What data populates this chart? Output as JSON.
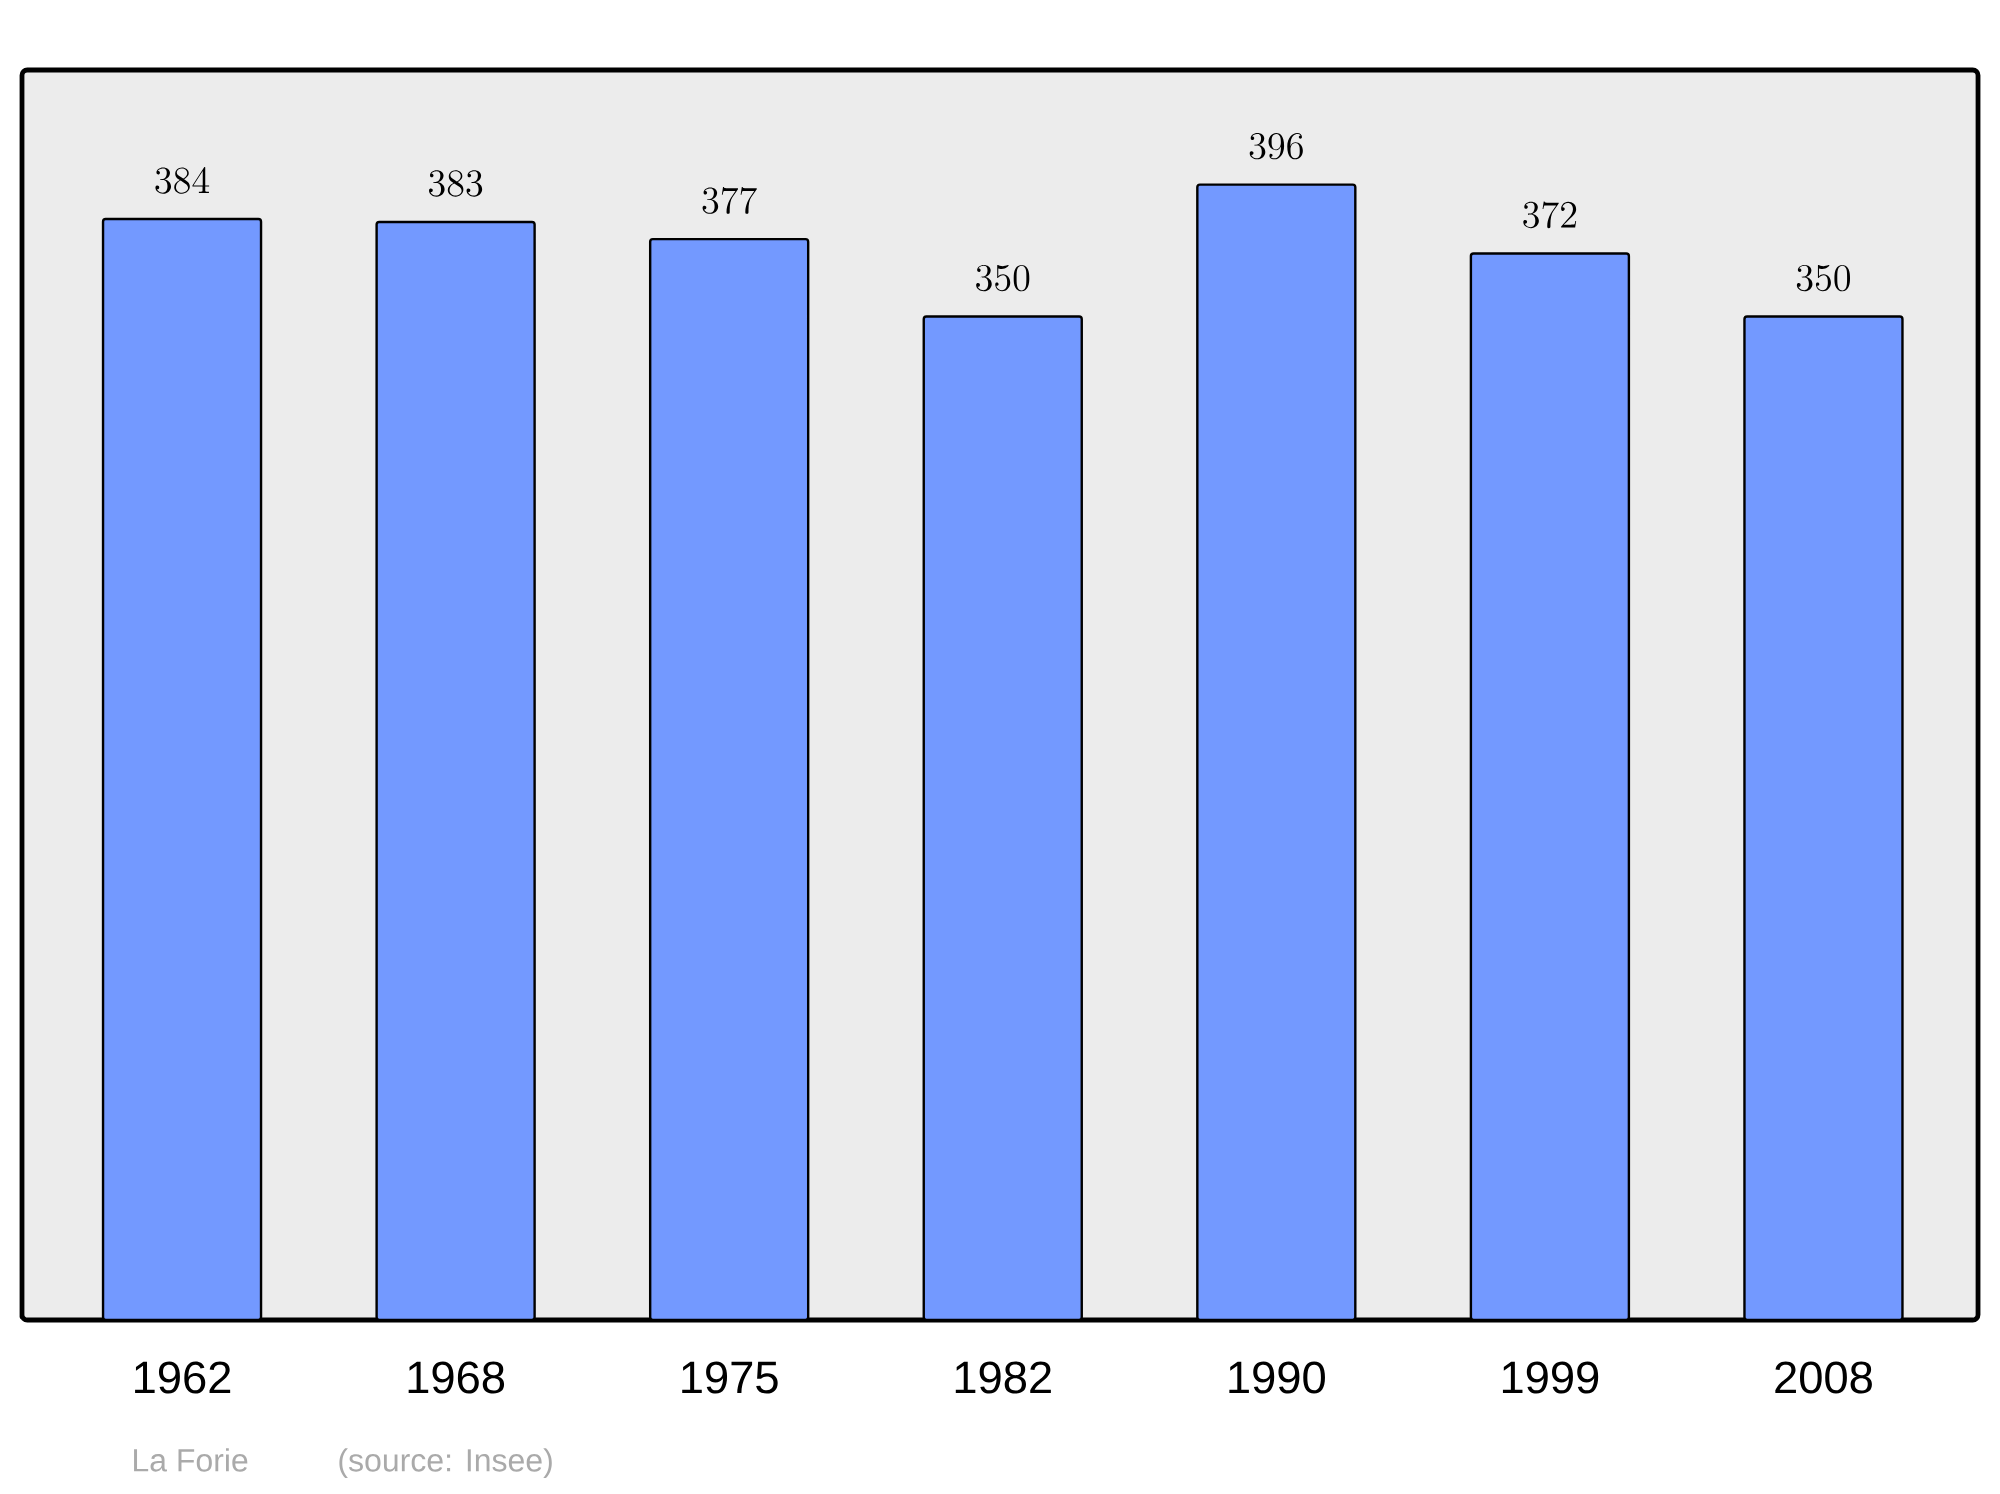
{
  "chart_data": {
    "type": "bar",
    "categories": [
      "1962",
      "1968",
      "1975",
      "1982",
      "1990",
      "1999",
      "2008"
    ],
    "values": [
      384,
      383,
      377,
      350,
      396,
      372,
      350
    ],
    "color": "#7399ff",
    "ylim": [
      0,
      436
    ],
    "tick_labels": "x",
    "data_labels": true,
    "annotations": [
      "La Forie",
      "(source: Insee)"
    ]
  }
}
